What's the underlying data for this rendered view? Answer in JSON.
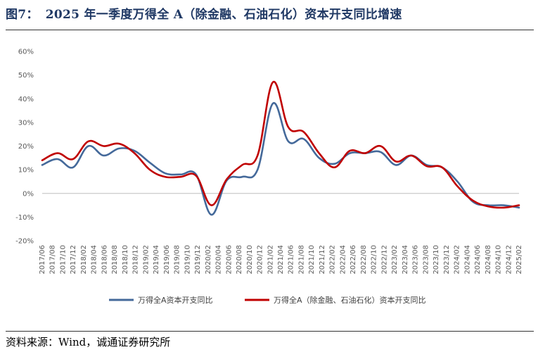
{
  "header": {
    "figure_label": "图7：",
    "title": "2025 年一季度万得全 A（除金融、石油石化）资本开支同比增速"
  },
  "source": "资料来源：Wind，诚通证券研究所",
  "colors": {
    "series1": "#44699a",
    "series2": "#c00000",
    "axis": "#bfbfbf"
  },
  "chart_data": {
    "type": "line",
    "title": "2025 年一季度万得全 A（除金融、石油石化）资本开支同比增速",
    "ylabel": "",
    "xlabel": "",
    "ylim": [
      -20,
      60
    ],
    "y_ticks": [
      60,
      50,
      40,
      30,
      20,
      10,
      0,
      -10,
      -20
    ],
    "y_tick_labels": [
      "60%",
      "50%",
      "40%",
      "30%",
      "20%",
      "10%",
      "0%",
      "-10%",
      "-20%"
    ],
    "x_tick_labels": [
      "2017/06",
      "2017/08",
      "2017/10",
      "2017/12",
      "2018/02",
      "2018/04",
      "2018/06",
      "2018/08",
      "2018/10",
      "2018/12",
      "2019/02",
      "2019/04",
      "2019/06",
      "2019/08",
      "2019/10",
      "2019/12",
      "2020/02",
      "2020/04",
      "2020/06",
      "2020/08",
      "2020/10",
      "2020/12",
      "2021/02",
      "2021/04",
      "2021/06",
      "2021/08",
      "2021/10",
      "2021/12",
      "2022/02",
      "2022/04",
      "2022/06",
      "2022/08",
      "2022/10",
      "2022/12",
      "2023/02",
      "2023/04",
      "2023/06",
      "2023/08",
      "2023/10",
      "2023/12",
      "2024/02",
      "2024/04",
      "2024/06",
      "2024/08",
      "2024/10",
      "2024/12",
      "2025/02"
    ],
    "x": [
      "2017Q2",
      "2017Q3",
      "2017Q4",
      "2018Q1",
      "2018Q2",
      "2018Q3",
      "2018Q4",
      "2019Q1",
      "2019Q2",
      "2019Q3",
      "2019Q4",
      "2020Q1",
      "2020Q2",
      "2020Q3",
      "2020Q4",
      "2021Q1",
      "2021Q2",
      "2021Q3",
      "2021Q4",
      "2022Q1",
      "2022Q2",
      "2022Q3",
      "2022Q4",
      "2023Q1",
      "2023Q2",
      "2023Q3",
      "2023Q4",
      "2024Q1",
      "2024Q2",
      "2024Q3",
      "2024Q4",
      "2025Q1"
    ],
    "series": [
      {
        "name": "万得全A资本开支同比",
        "values": [
          12,
          14.5,
          11,
          20,
          16,
          19,
          18,
          13,
          8.5,
          8,
          8,
          -9,
          5.5,
          7,
          10,
          38,
          22,
          23,
          15,
          12.5,
          17,
          17,
          17.5,
          12,
          16,
          12,
          11,
          5,
          -3.5,
          -5,
          -5,
          -6
        ]
      },
      {
        "name": "万得全A（除金融、石油石化）资本开支同比",
        "values": [
          14,
          17,
          14.5,
          22,
          20,
          21,
          17,
          10,
          7,
          7,
          7.5,
          -5,
          6,
          12,
          16,
          47,
          28,
          26,
          17,
          11,
          18,
          17,
          20,
          13.5,
          16,
          11.5,
          11,
          3,
          -3,
          -5.5,
          -6,
          -5
        ]
      }
    ],
    "legend": "bottom"
  }
}
